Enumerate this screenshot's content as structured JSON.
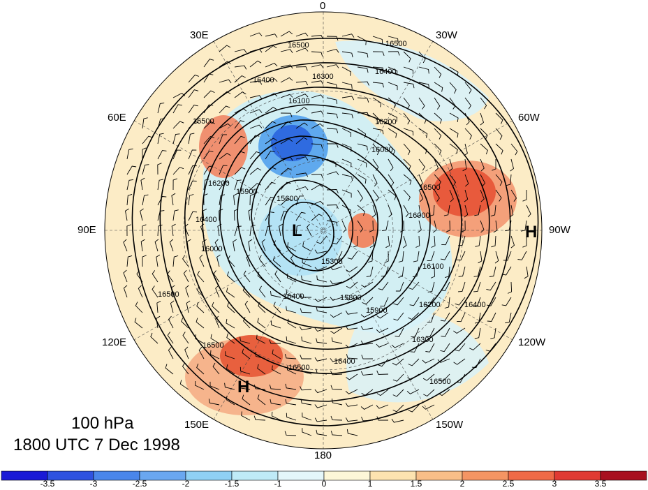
{
  "map": {
    "level": "100 hPa",
    "valid_time": "1800 UTC 7 Dec 1998",
    "lon_labels": {
      "top": "0",
      "ne": "30W",
      "nne": "60W",
      "right": "90W",
      "se": "120W",
      "sse": "150W",
      "bottom": "180",
      "ssw": "150E",
      "sw": "120E",
      "left": "90E",
      "nw": "60E",
      "nnw": "30E"
    },
    "centers": [
      {
        "label": "L",
        "name": "low-center"
      },
      {
        "label": "H",
        "name": "high-center-pacific"
      },
      {
        "label": "H",
        "name": "high-center-atlantic"
      }
    ],
    "contour_labels": [
      "16500",
      "16400",
      "16300",
      "16200",
      "16100",
      "16000",
      "15900",
      "15800",
      "15600",
      "15300"
    ],
    "colors": {
      "neg_strong": "#1a1ae6",
      "neg_light": "#aee6f7",
      "pos_light": "#fdebc0",
      "pos_strong": "#e85a3c",
      "contour": "#000000"
    }
  },
  "colorbar": {
    "ticks": [
      "-3.5",
      "-3",
      "-2.5",
      "-2",
      "-1.5",
      "-1",
      "0",
      "1",
      "1.5",
      "2",
      "2.5",
      "3",
      "3.5"
    ],
    "colors": [
      "#1a1ad6",
      "#2f52e0",
      "#4a86ea",
      "#6aa7f0",
      "#8fd0f4",
      "#bfeaf7",
      "#e4f6fa",
      "#fdf7d8",
      "#fde3b0",
      "#f8be88",
      "#f49563",
      "#ef6a47",
      "#e03a33",
      "#a8101f"
    ]
  }
}
